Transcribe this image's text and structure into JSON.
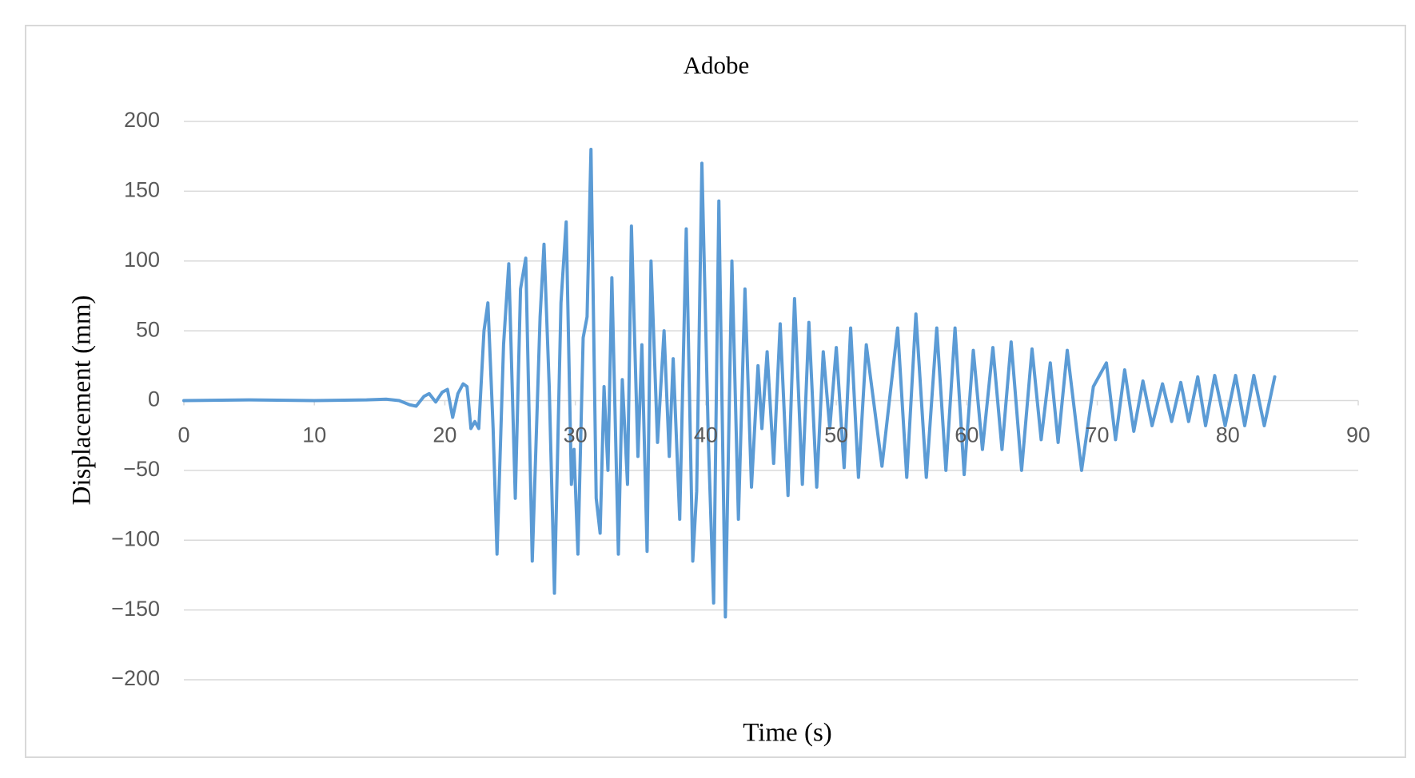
{
  "chart_data": {
    "type": "line",
    "title": "Adobe",
    "x_label": "Time (s)",
    "y_label": "Displacement (mm)",
    "color": "#5b9bd5",
    "grid": true,
    "xlim": [
      0,
      90
    ],
    "xticks": [
      0,
      10,
      20,
      30,
      40,
      50,
      60,
      70,
      80,
      90
    ],
    "ylim": [
      -200,
      200
    ],
    "yticks": [
      {
        "value": -200,
        "label": "−200"
      },
      {
        "value": -150,
        "label": "−150"
      },
      {
        "value": -100,
        "label": "−100"
      },
      {
        "value": -50,
        "label": "−50"
      },
      0,
      50,
      100,
      150,
      200
    ],
    "x": [
      0,
      5,
      10,
      14,
      15.5,
      16.5,
      17.3,
      17.8,
      18.4,
      18.8,
      19.3,
      19.8,
      20.2,
      20.6,
      21,
      21.4,
      21.7,
      22,
      22.3,
      22.6,
      23,
      23.3,
      23.7,
      24,
      24.5,
      24.9,
      25.4,
      25.8,
      26.2,
      26.7,
      27.3,
      27.6,
      28,
      28.4,
      28.9,
      29.3,
      29.7,
      29.9,
      30.2,
      30.6,
      30.9,
      31.2,
      31.6,
      31.9,
      32.2,
      32.5,
      32.8,
      33.3,
      33.6,
      34,
      34.3,
      34.8,
      35.1,
      35.5,
      35.8,
      36.3,
      36.8,
      37.2,
      37.5,
      38,
      38.5,
      39,
      39.3,
      39.7,
      40.2,
      40.6,
      41,
      41.5,
      42,
      42.5,
      43,
      43.5,
      44,
      44.3,
      44.7,
      45.2,
      45.7,
      46.3,
      46.8,
      47.4,
      47.9,
      48.5,
      49,
      49.5,
      50,
      50.6,
      51.1,
      51.7,
      52.3,
      53.5,
      54.7,
      55.4,
      56.1,
      56.9,
      57.7,
      58.4,
      59.1,
      59.8,
      60.5,
      61.2,
      62,
      62.7,
      63.4,
      64.2,
      65,
      65.7,
      66.4,
      67,
      67.7,
      68.8,
      69.7,
      70.7,
      71.4,
      72.1,
      72.8,
      73.5,
      74.2,
      75,
      75.7,
      76.4,
      77,
      77.7,
      78.3,
      79,
      79.8,
      80.6,
      81.3,
      82,
      82.8,
      83.6
    ],
    "values": [
      0,
      0.5,
      0,
      0.5,
      1,
      0,
      -3,
      -4,
      3,
      5,
      -1,
      6,
      8,
      -12,
      5,
      12,
      10,
      -20,
      -15,
      -20,
      50,
      70,
      -20,
      -110,
      40,
      98,
      -70,
      80,
      102,
      -115,
      60,
      112,
      10,
      -138,
      70,
      128,
      -60,
      -35,
      -110,
      45,
      60,
      180,
      -70,
      -95,
      10,
      -50,
      88,
      -110,
      15,
      -60,
      125,
      -40,
      40,
      -108,
      100,
      -30,
      50,
      -40,
      30,
      -85,
      123,
      -115,
      -65,
      170,
      -30,
      -145,
      143,
      -155,
      100,
      -85,
      80,
      -62,
      25,
      -20,
      35,
      -45,
      55,
      -68,
      73,
      -60,
      56,
      -62,
      35,
      -20,
      38,
      -48,
      52,
      -55,
      40,
      -47,
      52,
      -55,
      62,
      -55,
      52,
      -50,
      52,
      -53,
      36,
      -35,
      38,
      -35,
      42,
      -50,
      37,
      -28,
      27,
      -30,
      36,
      -50,
      10,
      27,
      -28,
      22,
      -22,
      14,
      -18,
      12,
      -15,
      13,
      -15,
      17,
      -18,
      18,
      -18,
      18,
      -18,
      18,
      -18,
      17
    ]
  }
}
